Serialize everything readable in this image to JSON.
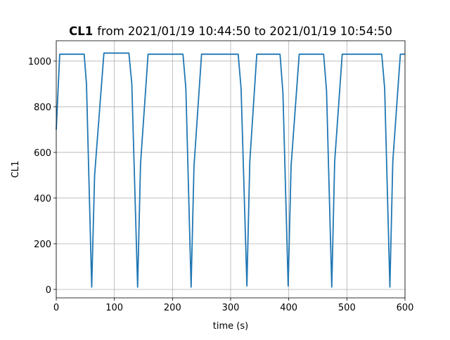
{
  "chart_data": {
    "type": "line",
    "title": {
      "bold": "CL1",
      "rest": "from 2021/01/19 10:44:50 to 2021/01/19 10:54:50"
    },
    "xlabel": "time (s)",
    "ylabel": "CL1",
    "x": [
      0,
      6,
      48,
      52,
      61,
      66,
      82,
      125,
      130,
      140,
      145,
      158,
      218,
      223,
      232,
      237,
      250,
      313,
      318,
      328,
      333,
      345,
      385,
      390,
      399,
      404,
      418,
      460,
      465,
      474,
      479,
      492,
      560,
      565,
      574,
      579,
      592,
      600
    ],
    "series": [
      {
        "name": "CL1",
        "color": "#1f77b4",
        "values": [
          700,
          1030,
          1030,
          900,
          10,
          500,
          1035,
          1035,
          900,
          10,
          550,
          1030,
          1030,
          880,
          10,
          540,
          1030,
          1030,
          880,
          15,
          560,
          1030,
          1030,
          860,
          15,
          540,
          1030,
          1030,
          870,
          10,
          560,
          1030,
          1030,
          880,
          10,
          560,
          1030,
          1030
        ]
      }
    ],
    "xlim": [
      0,
      600
    ],
    "xticks": [
      0,
      100,
      200,
      300,
      400,
      500,
      600
    ],
    "ylim": [
      -37,
      1089
    ],
    "yticks": [
      0,
      200,
      400,
      600,
      800,
      1000
    ],
    "grid": true
  }
}
